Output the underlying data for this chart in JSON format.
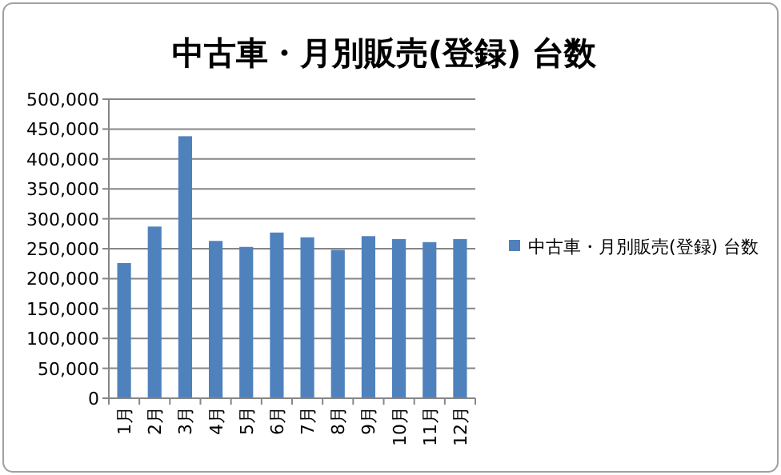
{
  "chart_data": {
    "type": "bar",
    "title": "中古車・月別販売(登録) 台数",
    "categories": [
      "1月",
      "2月",
      "3月",
      "4月",
      "5月",
      "6月",
      "7月",
      "8月",
      "9月",
      "10月",
      "11月",
      "12月"
    ],
    "series": [
      {
        "name": "中古車・月別販売(登録) 台数",
        "color": "#4f81bd",
        "values": [
          226000,
          287000,
          438000,
          263000,
          253000,
          277000,
          269000,
          248000,
          271000,
          266000,
          261000,
          266000
        ]
      }
    ],
    "ylim": [
      0,
      500000
    ],
    "yticks": [
      {
        "value": 0,
        "label": "0"
      },
      {
        "value": 50000,
        "label": "50,000"
      },
      {
        "value": 100000,
        "label": "100,000"
      },
      {
        "value": 150000,
        "label": "150,000"
      },
      {
        "value": 200000,
        "label": "200,000"
      },
      {
        "value": 250000,
        "label": "250,000"
      },
      {
        "value": 300000,
        "label": "300,000"
      },
      {
        "value": 350000,
        "label": "350,000"
      },
      {
        "value": 400000,
        "label": "400,000"
      },
      {
        "value": 450000,
        "label": "450,000"
      },
      {
        "value": 500000,
        "label": "500,000"
      }
    ],
    "grid": "y",
    "legend": "right"
  }
}
